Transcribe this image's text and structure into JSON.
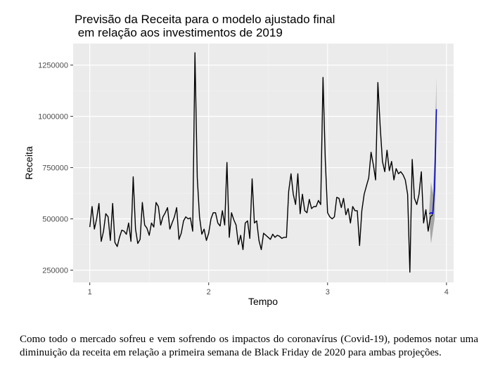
{
  "caption": "Como todo o mercado sofreu e vem sofrendo os impactos do coronavírus (Covid-19), podemos notar uma diminuição da receita em relação a primeira semana de Black Friday de 2020 para ambas projeções.",
  "chart_data": {
    "type": "line",
    "title_lines": [
      "Previsão da Receita para o modelo ajustado final",
      " em relação aos investimentos de 2019"
    ],
    "xlabel": "Tempo",
    "ylabel": "Receita",
    "xlim": [
      0.86,
      4.06
    ],
    "ylim": [
      190000,
      1355000
    ],
    "x_ticks": [
      1,
      2,
      3,
      4
    ],
    "x_tick_labels": [
      "1",
      "2",
      "3",
      "4"
    ],
    "y_ticks": [
      250000,
      500000,
      750000,
      1000000,
      1250000
    ],
    "y_tick_labels": [
      "250000",
      "500000",
      "750000",
      "1000000",
      "1250000"
    ],
    "grid": true,
    "background": "#ebebeb",
    "series": [
      {
        "color": "#000000",
        "x_start": 1.0,
        "x_step": 0.01923,
        "values": [
          460000,
          560000,
          450000,
          500000,
          575000,
          390000,
          440000,
          525000,
          510000,
          395000,
          575000,
          385000,
          365000,
          410000,
          445000,
          440000,
          425000,
          480000,
          390000,
          705000,
          450000,
          380000,
          400000,
          580000,
          470000,
          455000,
          420000,
          480000,
          460000,
          580000,
          560000,
          470000,
          510000,
          530000,
          555000,
          450000,
          480000,
          510000,
          555000,
          400000,
          430000,
          490000,
          510000,
          500000,
          505000,
          440000,
          1310000,
          700000,
          510000,
          425000,
          450000,
          395000,
          430000,
          500000,
          530000,
          530000,
          480000,
          465000,
          540000,
          470000,
          775000,
          410000,
          530000,
          495000,
          470000,
          375000,
          420000,
          350000,
          480000,
          490000,
          405000,
          695000,
          480000,
          490000,
          395000,
          350000,
          430000,
          420000,
          410000,
          400000,
          425000,
          410000,
          420000,
          415000,
          405000,
          410000,
          410000,
          635000,
          720000,
          620000,
          570000,
          720000,
          525000,
          620000,
          540000,
          530000,
          595000,
          550000,
          560000,
          560000,
          590000,
          570000,
          1190000,
          790000,
          530000,
          510000,
          500000,
          510000,
          605000,
          600000,
          555000,
          600000,
          520000,
          550000,
          480000,
          560000,
          540000,
          540000,
          370000,
          540000,
          620000,
          660000,
          700000,
          825000,
          765000,
          690000,
          1165000,
          950000,
          780000,
          730000,
          835000,
          735000,
          780000,
          690000,
          745000,
          720000,
          730000,
          715000,
          690000,
          620000,
          240000,
          790000,
          600000,
          570000,
          620000,
          730000,
          480000,
          545000,
          440000,
          510000,
          520000
        ]
      },
      {
        "color": "#0000cd",
        "x_start": 3.855,
        "x_step": 0.015,
        "values": [
          525000,
          530000,
          525000,
          655000,
          1035000
        ]
      }
    ],
    "confidence_band": {
      "color": "#999999",
      "x": [
        3.855,
        3.87,
        3.885,
        3.9,
        3.915
      ],
      "lower": [
        500000,
        380000,
        440000,
        500000,
        880000
      ],
      "upper": [
        540000,
        680000,
        620000,
        810000,
        1190000
      ]
    }
  }
}
